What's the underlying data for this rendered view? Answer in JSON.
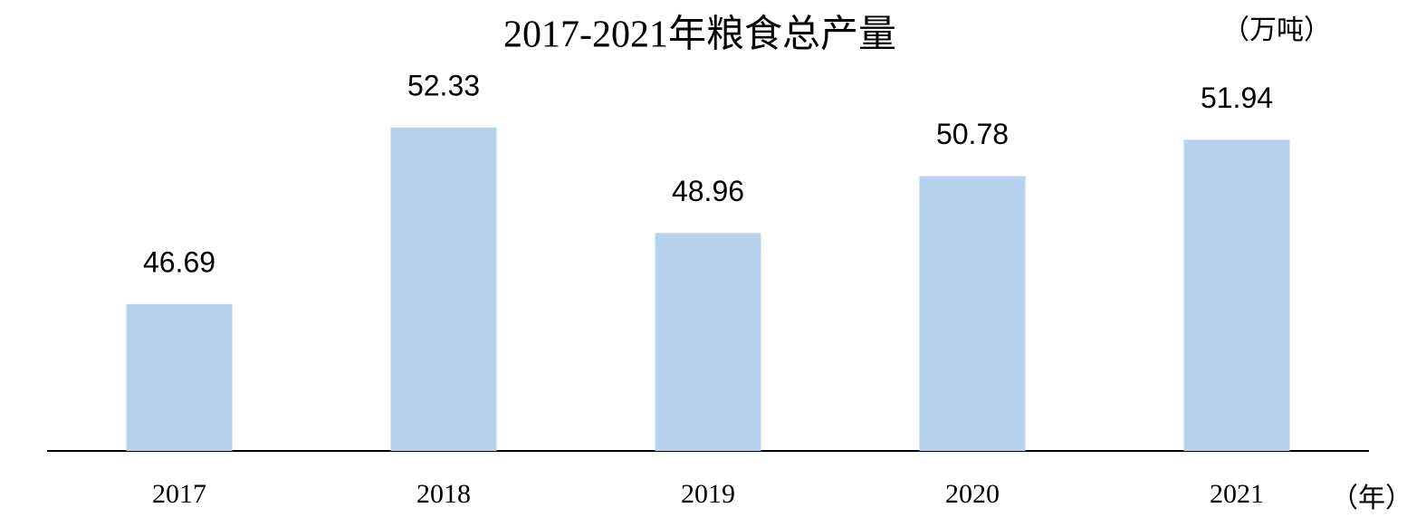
{
  "chart_data": {
    "type": "bar",
    "title": "2017-2021年粮食总产量",
    "y_unit": "（万吨）",
    "x_unit": "（年）",
    "categories": [
      "2017",
      "2018",
      "2019",
      "2020",
      "2021"
    ],
    "values": [
      46.69,
      52.33,
      48.96,
      50.78,
      51.94
    ],
    "color": "#b7d2ec",
    "ylim": [
      42,
      56
    ],
    "grid": false
  }
}
